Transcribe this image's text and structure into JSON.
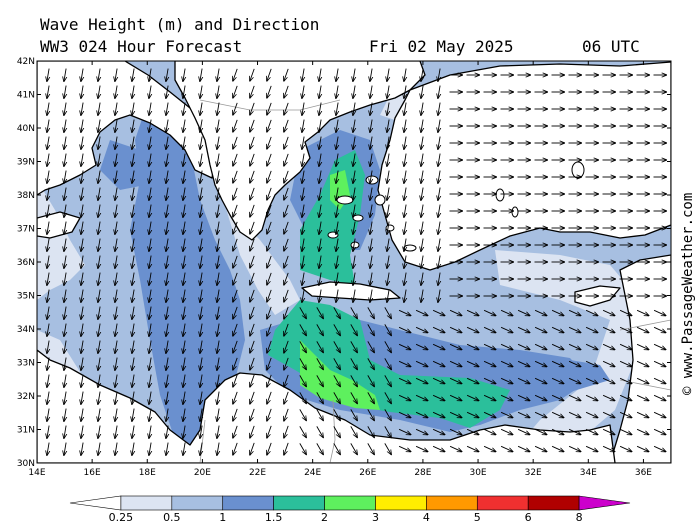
{
  "header": {
    "title": "Wave Height (m) and Direction",
    "subtitle": "WW3 024 Hour Forecast",
    "date": "Fri 02 May 2025",
    "time": "06 UTC"
  },
  "credit": "© www.PassageWeather.com",
  "map": {
    "lon_range": [
      14,
      37
    ],
    "lat_range": [
      30,
      42
    ],
    "x_ticks": [
      "14E",
      "16E",
      "18E",
      "20E",
      "22E",
      "24E",
      "26E",
      "28E",
      "30E",
      "32E",
      "34E",
      "36E"
    ],
    "y_ticks": [
      "30N",
      "31N",
      "32N",
      "33N",
      "34N",
      "35N",
      "36N",
      "37N",
      "38N",
      "39N",
      "40N",
      "41N",
      "42N"
    ],
    "sea_color": "#a7bfe1",
    "land_color": "#ffffff"
  },
  "legend": {
    "labels": [
      "0.25",
      "0.5",
      "1",
      "1.5",
      "2",
      "3",
      "4",
      "5",
      "6",
      "8"
    ],
    "colors": [
      "#ffffff",
      "#dce4f2",
      "#a7bfe1",
      "#6a90cf",
      "#2bbf9b",
      "#5ef05e",
      "#ffee00",
      "#ff9900",
      "#f03030",
      "#b00000",
      "#cc00cc"
    ]
  }
}
